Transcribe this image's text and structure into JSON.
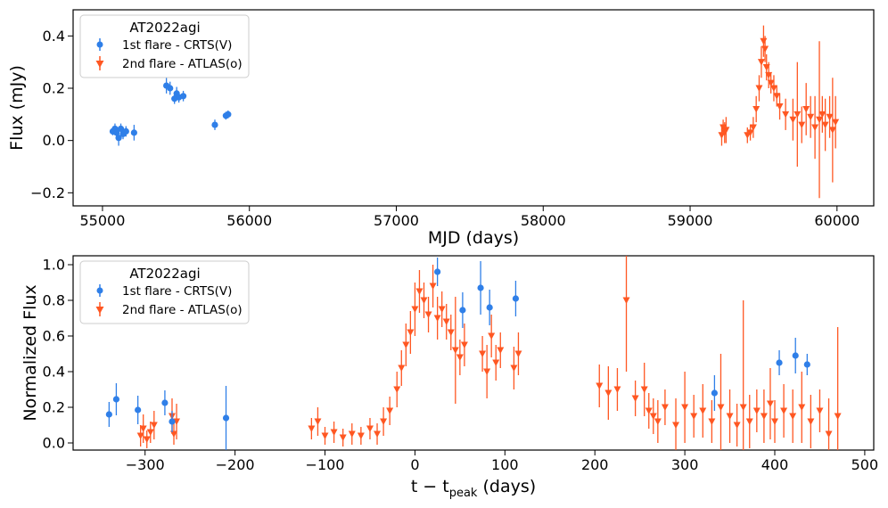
{
  "colors": {
    "crts": "#2f7fe8",
    "atlas": "#ff5722"
  },
  "chart_data": [
    {
      "type": "scatter",
      "title": "",
      "xlabel": "MJD (days)",
      "ylabel": "Flux (mJy)",
      "xlim": [
        54800,
        60250
      ],
      "ylim": [
        -0.25,
        0.5
      ],
      "xticks": [
        55000,
        56000,
        57000,
        58000,
        59000,
        60000
      ],
      "xtick_labels": [
        "55000",
        "56000",
        "57000",
        "58000",
        "59000",
        "60000"
      ],
      "yticks": [
        -0.2,
        0,
        0.2,
        0.4
      ],
      "ytick_labels": [
        "−0.2",
        "0.0",
        "0.2",
        "0.4"
      ],
      "legend": {
        "title": "AT2022agi",
        "position": "top-left",
        "entries": [
          "1st flare - CRTS(V)",
          "2nd flare - ATLAS(o)"
        ]
      },
      "series": [
        {
          "name": "1st flare - CRTS(V)",
          "marker": "circle",
          "x": [
            55070,
            55085,
            55095,
            55110,
            55125,
            55140,
            55160,
            55215,
            55435,
            55460,
            55490,
            55505,
            55520,
            55550,
            55765,
            55840,
            55855
          ],
          "y": [
            0.035,
            0.045,
            0.03,
            0.01,
            0.045,
            0.025,
            0.035,
            0.03,
            0.21,
            0.2,
            0.16,
            0.18,
            0.165,
            0.17,
            0.06,
            0.095,
            0.1
          ],
          "err": [
            0.015,
            0.02,
            0.015,
            0.03,
            0.02,
            0.02,
            0.02,
            0.03,
            0.03,
            0.025,
            0.02,
            0.025,
            0.02,
            0.02,
            0.02,
            0.015,
            0.015
          ]
        },
        {
          "name": "2nd flare - ATLAS(o)",
          "marker": "triangle-down",
          "x": [
            59215,
            59225,
            59235,
            59245,
            59390,
            59410,
            59430,
            59450,
            59470,
            59485,
            59500,
            59510,
            59520,
            59535,
            59550,
            59570,
            59590,
            59610,
            59650,
            59700,
            59730,
            59760,
            59790,
            59820,
            59850,
            59880,
            59900,
            59920,
            59950,
            59970,
            59990
          ],
          "y": [
            0.02,
            0.05,
            0.03,
            0.04,
            0.02,
            0.03,
            0.05,
            0.12,
            0.2,
            0.3,
            0.38,
            0.35,
            0.28,
            0.25,
            0.22,
            0.2,
            0.17,
            0.13,
            0.1,
            0.08,
            0.1,
            0.06,
            0.12,
            0.09,
            0.05,
            0.08,
            0.1,
            0.06,
            0.09,
            0.04,
            0.07
          ],
          "err": [
            0.04,
            0.03,
            0.04,
            0.05,
            0.03,
            0.03,
            0.04,
            0.05,
            0.05,
            0.06,
            0.06,
            0.05,
            0.05,
            0.05,
            0.04,
            0.05,
            0.04,
            0.05,
            0.06,
            0.08,
            0.2,
            0.07,
            0.1,
            0.08,
            0.12,
            0.3,
            0.07,
            0.1,
            0.08,
            0.2,
            0.1
          ]
        }
      ]
    },
    {
      "type": "scatter",
      "title": "",
      "xlabel": "t − t",
      "xlabel_sub": "peak",
      "xlabel_suffix": " (days)",
      "ylabel": "Normalized Flux",
      "xlim": [
        -380,
        510
      ],
      "ylim": [
        -0.04,
        1.05
      ],
      "xticks": [
        -300,
        -200,
        -100,
        0,
        100,
        200,
        300,
        400,
        500
      ],
      "xtick_labels": [
        "−300",
        "−200",
        "−100",
        "0",
        "100",
        "200",
        "300",
        "400",
        "500"
      ],
      "yticks": [
        0,
        0.2,
        0.4,
        0.6,
        0.8,
        1.0
      ],
      "ytick_labels": [
        "0.0",
        "0.2",
        "0.4",
        "0.6",
        "0.8",
        "1.0"
      ],
      "legend": {
        "title": "AT2022agi",
        "position": "top-left",
        "entries": [
          "1st flare - CRTS(V)",
          "2nd flare - ATLAS(o)"
        ]
      },
      "series": [
        {
          "name": "1st flare - CRTS(V)",
          "marker": "circle",
          "x": [
            -340,
            -332,
            -308,
            -278,
            -270,
            -210,
            25,
            53,
            73,
            83,
            112,
            333,
            405,
            423,
            436
          ],
          "y": [
            0.16,
            0.245,
            0.185,
            0.225,
            0.12,
            0.14,
            0.96,
            0.745,
            0.87,
            0.76,
            0.81,
            0.28,
            0.45,
            0.49,
            0.44
          ],
          "err": [
            0.07,
            0.09,
            0.08,
            0.07,
            0.06,
            0.18,
            0.08,
            0.1,
            0.15,
            0.1,
            0.1,
            0.1,
            0.07,
            0.1,
            0.06
          ]
        },
        {
          "name": "2nd flare - ATLAS(o)",
          "marker": "triangle-down",
          "x": [
            -305,
            -302,
            -298,
            -294,
            -290,
            -270,
            -268,
            -265,
            -115,
            -108,
            -100,
            -90,
            -80,
            -70,
            -60,
            -50,
            -42,
            -35,
            -28,
            -20,
            -15,
            -10,
            -5,
            0,
            5,
            10,
            15,
            20,
            25,
            30,
            35,
            40,
            45,
            50,
            55,
            75,
            80,
            85,
            90,
            95,
            110,
            115,
            205,
            215,
            225,
            235,
            245,
            255,
            260,
            265,
            270,
            278,
            290,
            300,
            310,
            320,
            330,
            340,
            350,
            358,
            365,
            372,
            380,
            388,
            395,
            400,
            410,
            420,
            430,
            440,
            450,
            460,
            470
          ],
          "y": [
            0.04,
            0.08,
            0.02,
            0.06,
            0.1,
            0.15,
            0.05,
            0.12,
            0.08,
            0.12,
            0.04,
            0.06,
            0.03,
            0.05,
            0.04,
            0.08,
            0.05,
            0.12,
            0.18,
            0.3,
            0.42,
            0.55,
            0.62,
            0.75,
            0.85,
            0.8,
            0.72,
            0.88,
            0.7,
            0.75,
            0.68,
            0.62,
            0.52,
            0.48,
            0.55,
            0.5,
            0.4,
            0.6,
            0.45,
            0.52,
            0.42,
            0.5,
            0.32,
            0.28,
            0.3,
            0.8,
            0.25,
            0.3,
            0.18,
            0.15,
            0.12,
            0.2,
            0.1,
            0.2,
            0.15,
            0.18,
            0.12,
            0.2,
            0.15,
            0.1,
            0.2,
            0.12,
            0.18,
            0.15,
            0.22,
            0.12,
            0.18,
            0.15,
            0.2,
            0.12,
            0.18,
            0.05,
            0.15
          ],
          "err": [
            0.06,
            0.08,
            0.05,
            0.06,
            0.08,
            0.1,
            0.06,
            0.1,
            0.06,
            0.08,
            0.05,
            0.06,
            0.05,
            0.06,
            0.05,
            0.06,
            0.06,
            0.08,
            0.08,
            0.1,
            0.1,
            0.12,
            0.12,
            0.15,
            0.12,
            0.1,
            0.1,
            0.12,
            0.12,
            0.1,
            0.1,
            0.1,
            0.3,
            0.1,
            0.12,
            0.1,
            0.15,
            0.12,
            0.1,
            0.1,
            0.12,
            0.12,
            0.12,
            0.15,
            0.12,
            0.4,
            0.1,
            0.15,
            0.1,
            0.1,
            0.12,
            0.1,
            0.15,
            0.2,
            0.12,
            0.15,
            0.12,
            0.3,
            0.15,
            0.12,
            0.6,
            0.15,
            0.12,
            0.15,
            0.2,
            0.12,
            0.15,
            0.15,
            0.2,
            0.15,
            0.12,
            0.2,
            0.5
          ]
        }
      ]
    }
  ]
}
